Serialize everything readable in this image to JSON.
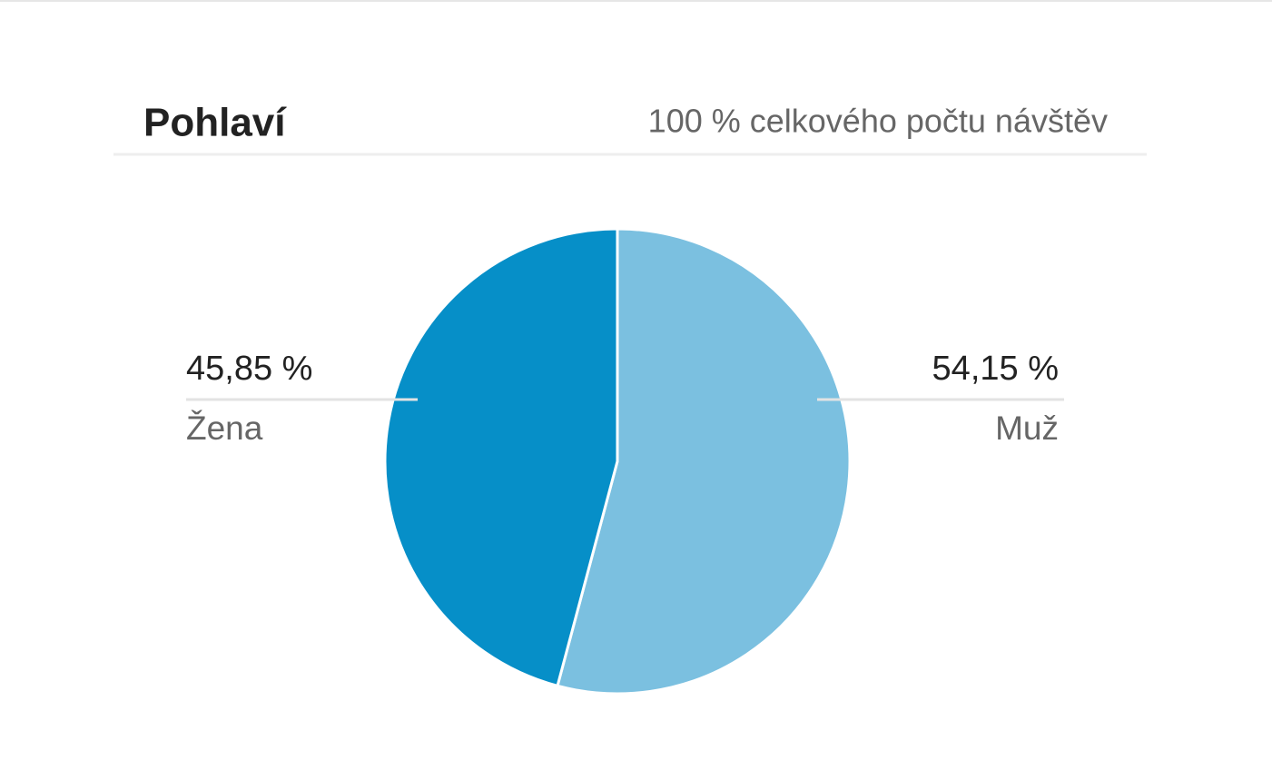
{
  "chart_data": {
    "type": "pie",
    "title": "Pohlaví",
    "subtitle": "100 % celkového počtu návštěv",
    "categories": [
      "Muž",
      "Žena"
    ],
    "values": [
      54.15,
      45.85
    ],
    "value_labels": [
      "54,15 %",
      "45,85 %"
    ],
    "colors": [
      "#7bc0e0",
      "#068fc8"
    ]
  }
}
